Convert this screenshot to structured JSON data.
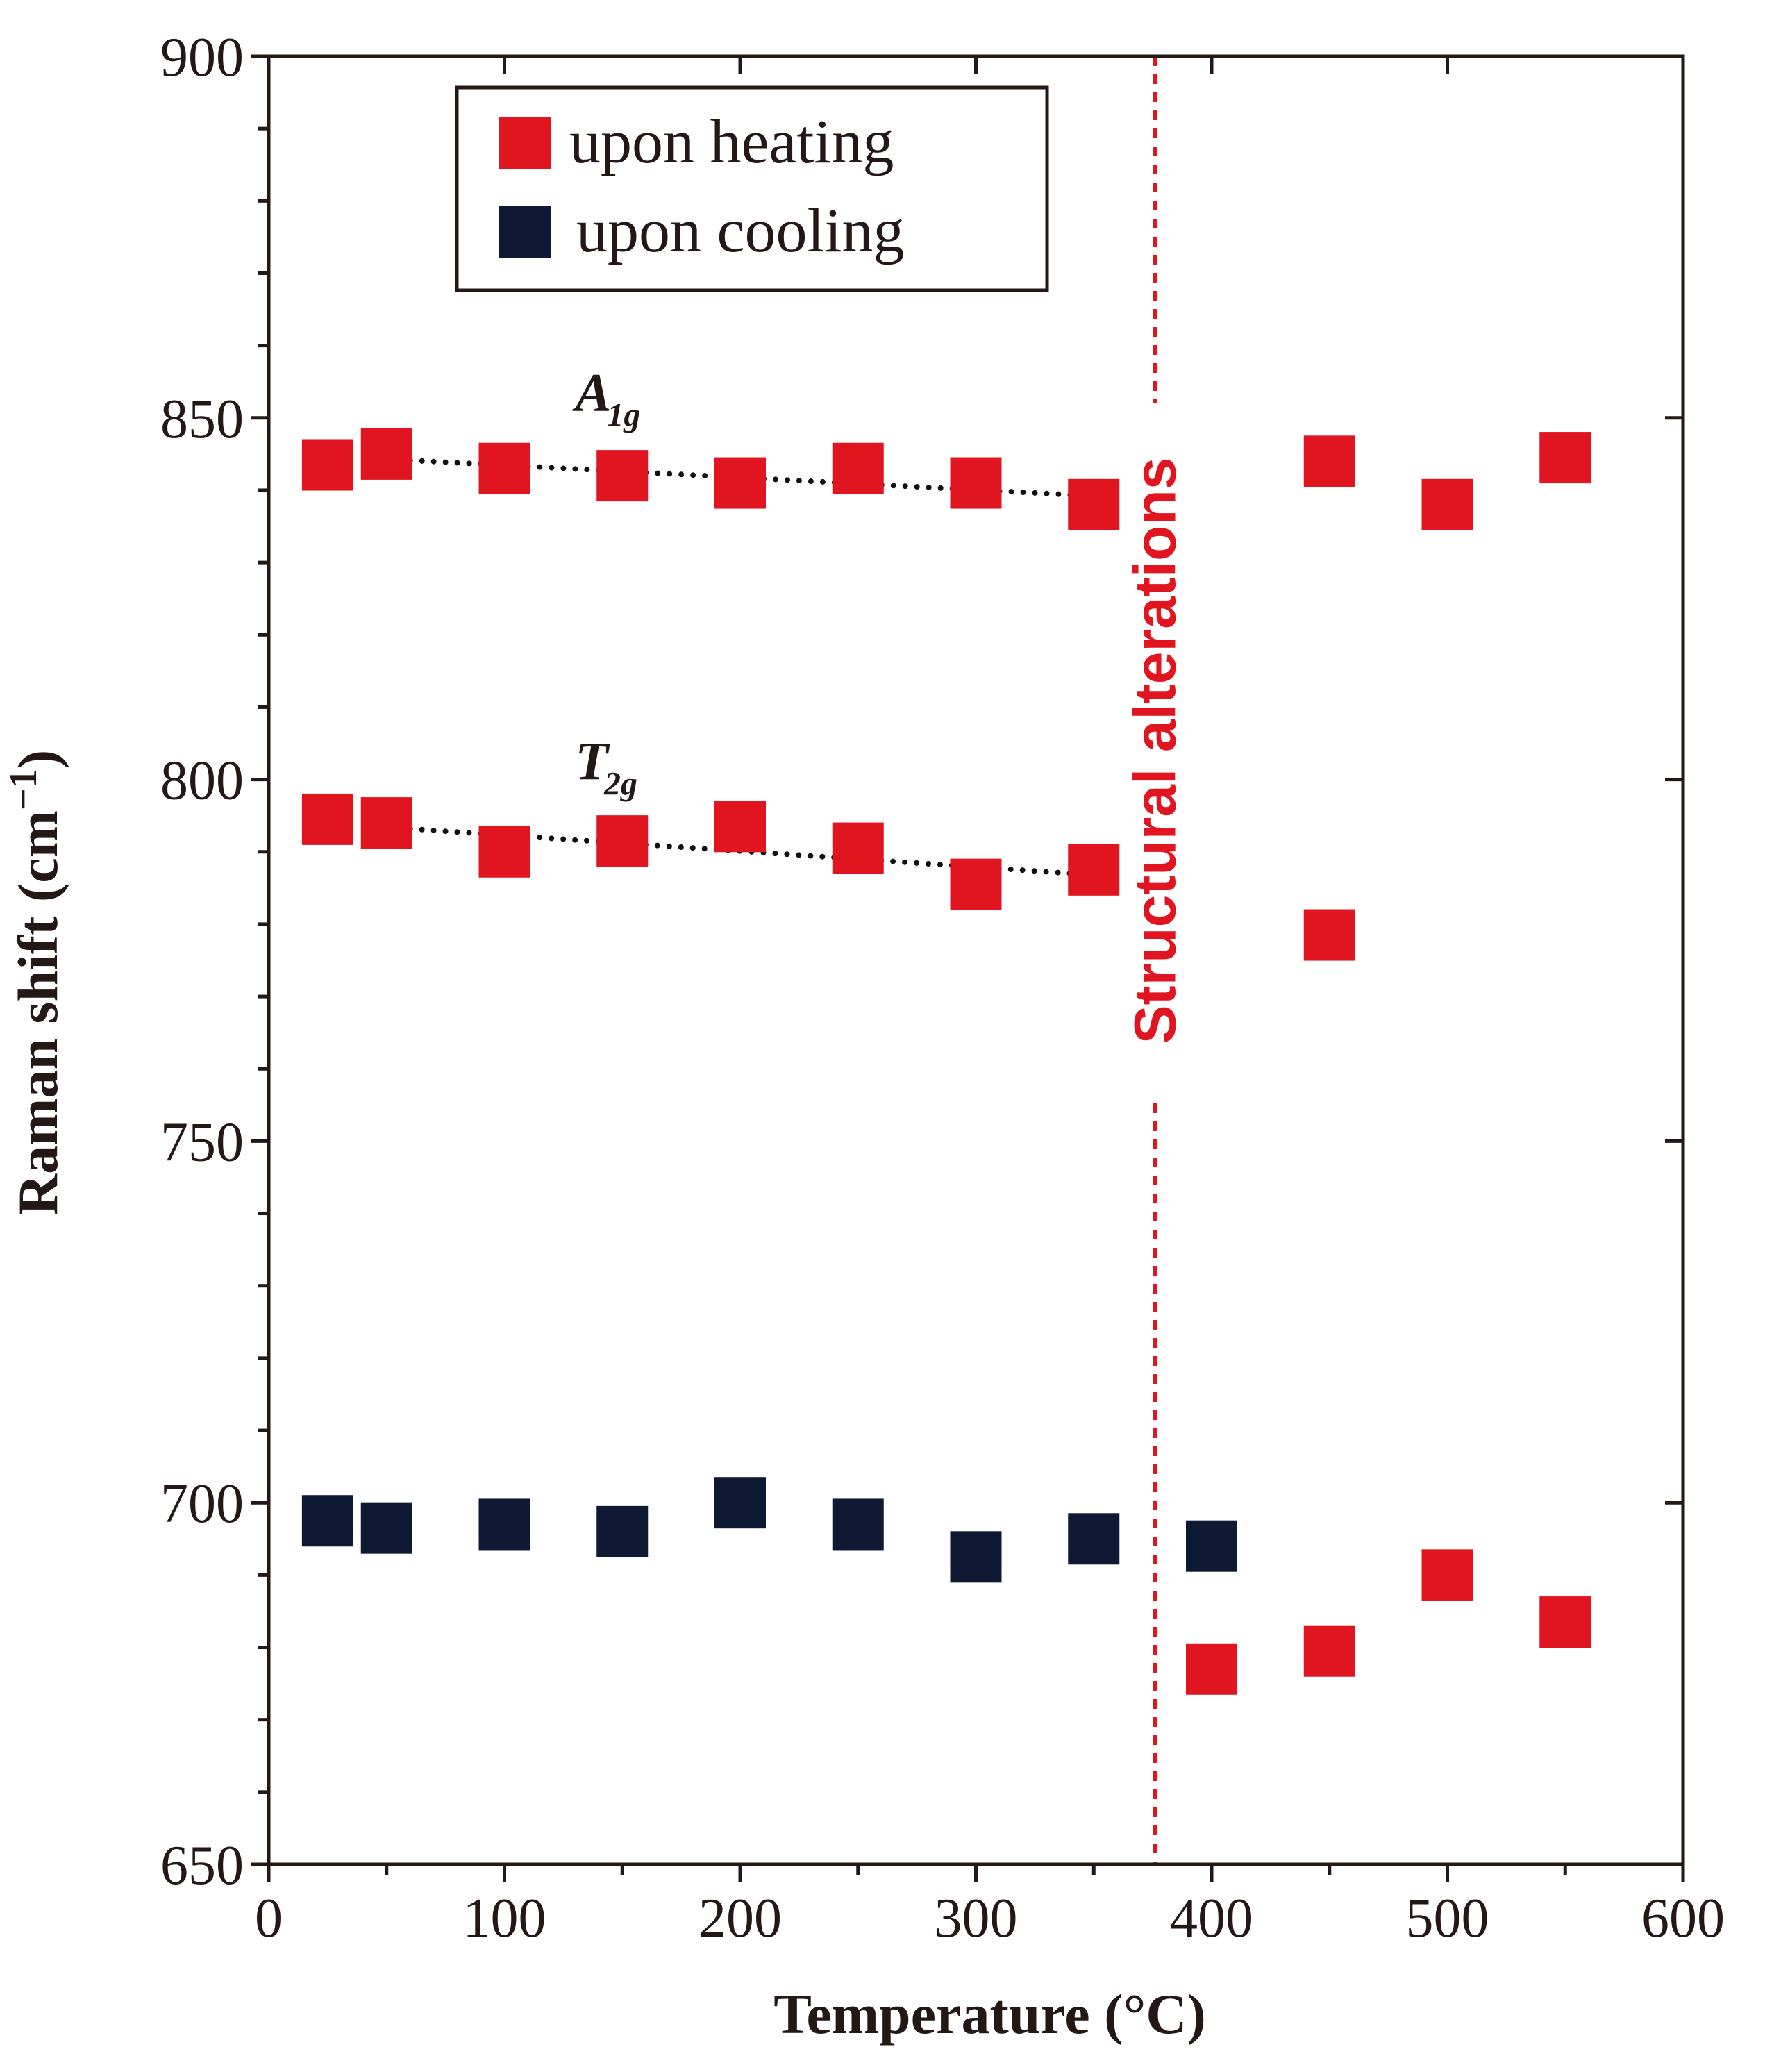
{
  "chart_data": {
    "type": "scatter",
    "title": "",
    "xlabel": "Temperature (°C)",
    "ylabel_main": "Raman shift (cm",
    "ylabel_sup": "−1",
    "ylabel_close": ")",
    "xlim": [
      0,
      600
    ],
    "ylim": [
      650,
      900
    ],
    "xticks": [
      "0",
      "100",
      "200",
      "300",
      "400",
      "500",
      "600"
    ],
    "yticks": [
      "650",
      "700",
      "750",
      "800",
      "850",
      "900"
    ],
    "grid": false,
    "legend_position": "top-left",
    "legend": [
      {
        "label": "upon heating",
        "color": "#e0151f"
      },
      {
        "label": "upon cooling",
        "color": "#0e1a33"
      }
    ],
    "series": [
      {
        "name": "upon heating",
        "color": "#e0151f",
        "points": [
          [
            25,
            843.5
          ],
          [
            50,
            845
          ],
          [
            100,
            843
          ],
          [
            150,
            842
          ],
          [
            200,
            841
          ],
          [
            250,
            843
          ],
          [
            300,
            841
          ],
          [
            350,
            838
          ],
          [
            450,
            844
          ],
          [
            500,
            838
          ],
          [
            550,
            844.5
          ],
          [
            25,
            794.5
          ],
          [
            50,
            794
          ],
          [
            100,
            790
          ],
          [
            150,
            791.5
          ],
          [
            200,
            793.5
          ],
          [
            250,
            790.5
          ],
          [
            300,
            785.5
          ],
          [
            350,
            787.5
          ],
          [
            450,
            778.5
          ],
          [
            400,
            677
          ],
          [
            450,
            679.5
          ],
          [
            500,
            690
          ],
          [
            550,
            683.5
          ]
        ]
      },
      {
        "name": "upon cooling",
        "color": "#0e1a33",
        "points": [
          [
            25,
            697.5
          ],
          [
            50,
            696.5
          ],
          [
            100,
            697
          ],
          [
            150,
            696
          ],
          [
            200,
            700
          ],
          [
            250,
            697
          ],
          [
            300,
            692.5
          ],
          [
            350,
            695
          ],
          [
            400,
            694
          ]
        ]
      }
    ],
    "trendlines": [
      {
        "label_main": "A",
        "label_sub": "1g",
        "from": [
          50,
          844.3
        ],
        "to": [
          350,
          839.2
        ],
        "label_at": [
          130,
          851
        ]
      },
      {
        "label_main": "T",
        "label_sub": "2g",
        "from": [
          50,
          793.4
        ],
        "to": [
          350,
          786.8
        ],
        "label_at": [
          130,
          800
        ]
      }
    ],
    "annotation": {
      "text": "Structural alterations",
      "x": 376,
      "color": "#e0151f",
      "label_center_y": 804
    }
  }
}
